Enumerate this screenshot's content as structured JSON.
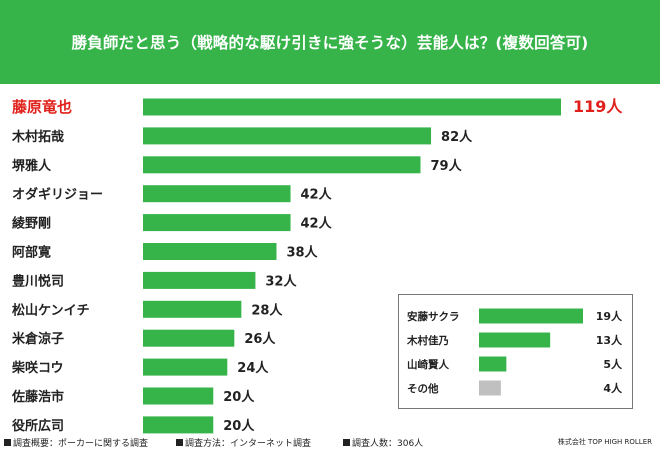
{
  "title": "勝負師だと思う（戦略的な駆け引きに強そうな）芸能人は？(複数回答可)",
  "chart_data": {
    "type": "bar",
    "orientation": "horizontal",
    "unit": "人",
    "categories": [
      "藤原竜也",
      "木村拓哉",
      "堺雅人",
      "オダギリジョー",
      "綾野剛",
      "阿部寛",
      "豊川悦司",
      "松山ケンイチ",
      "米倉涼子",
      "柴咲コウ",
      "佐藤浩市",
      "役所広司"
    ],
    "values": [
      119,
      82,
      79,
      42,
      42,
      38,
      32,
      28,
      26,
      24,
      20,
      20
    ],
    "value_labels": [
      "119人",
      "82人",
      "79人",
      "42人",
      "42人",
      "38人",
      "32人",
      "28人",
      "26人",
      "24人",
      "20人",
      "20人"
    ],
    "highlight_index": 0,
    "xlim": [
      0,
      119
    ],
    "colors": {
      "bar": "#36b44a",
      "highlight": "#e0201b",
      "text": "#222222"
    },
    "inset": {
      "type": "bar",
      "orientation": "horizontal",
      "categories": [
        "安藤サクラ",
        "木村佳乃",
        "山崎賢人",
        "その他"
      ],
      "values": [
        19,
        13,
        5,
        4
      ],
      "value_labels": [
        "19人",
        "13人",
        "5人",
        "4人"
      ],
      "bar_colors": [
        "#36b44a",
        "#36b44a",
        "#36b44a",
        "#c0c0c0"
      ],
      "xlim": [
        0,
        19
      ]
    }
  },
  "footer": {
    "survey_overview": "調査概要：ポーカーに関する調査",
    "survey_method": "調査方法：インターネット調査",
    "respondents": "調査人数：306人",
    "company": "株式会社 TOP HIGH ROLLER"
  }
}
